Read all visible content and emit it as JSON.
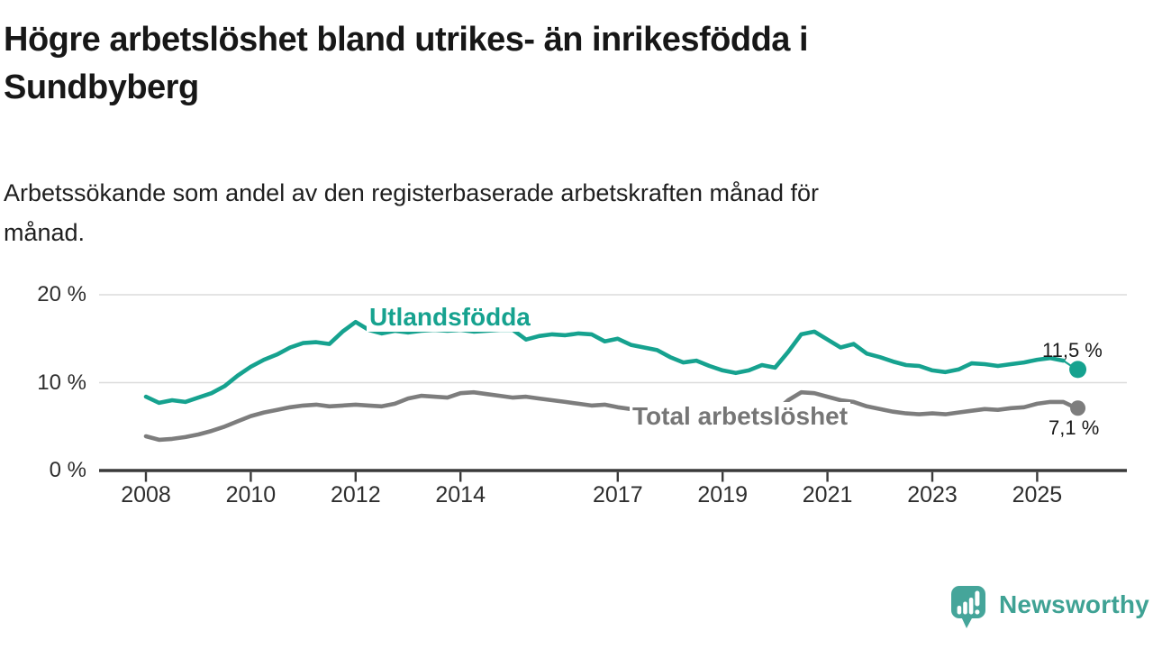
{
  "header": {
    "title_line1": "Högre arbetslöshet bland utrikes- än inrikesfödda i",
    "title_line2": "Sundbyberg",
    "subtitle_line1": "Arbetssökande som andel av den registerbaserade arbetskraften månad för",
    "subtitle_line2": "månad."
  },
  "chart_data": {
    "type": "line",
    "title": "Högre arbetslöshet bland utrikes- än inrikesfödda i Sundbyberg",
    "subtitle": "Arbetssökande som andel av den registerbaserade arbetskraften månad för månad.",
    "unit": "%",
    "grid": "horizontal",
    "legend_position": "inline-labels",
    "y_axis": {
      "range": [
        0,
        20
      ],
      "ticks": [
        {
          "value": 0,
          "label": "0 %"
        },
        {
          "value": 10,
          "label": "10 %"
        },
        {
          "value": 20,
          "label": "20 %"
        }
      ]
    },
    "x_axis": {
      "range": [
        2008,
        2026
      ],
      "ticks": [
        {
          "value": 2008,
          "label": "2008"
        },
        {
          "value": 2010,
          "label": "2010"
        },
        {
          "value": 2012,
          "label": "2012"
        },
        {
          "value": 2014,
          "label": "2014"
        },
        {
          "value": 2017,
          "label": "2017"
        },
        {
          "value": 2019,
          "label": "2019"
        },
        {
          "value": 2021,
          "label": "2021"
        },
        {
          "value": 2023,
          "label": "2023"
        },
        {
          "value": 2025,
          "label": "2025"
        }
      ]
    },
    "x": [
      2008,
      2008.25,
      2008.5,
      2008.75,
      2009,
      2009.25,
      2009.5,
      2009.75,
      2010,
      2010.25,
      2010.5,
      2010.75,
      2011,
      2011.25,
      2011.5,
      2011.75,
      2012,
      2012.25,
      2012.5,
      2012.75,
      2013,
      2013.25,
      2013.5,
      2013.75,
      2014,
      2014.25,
      2014.5,
      2014.75,
      2015,
      2015.25,
      2015.5,
      2015.75,
      2016,
      2016.25,
      2016.5,
      2016.75,
      2017,
      2017.25,
      2017.5,
      2017.75,
      2018,
      2018.25,
      2018.5,
      2018.75,
      2019,
      2019.25,
      2019.5,
      2019.75,
      2020,
      2020.25,
      2020.5,
      2020.75,
      2021,
      2021.25,
      2021.5,
      2021.75,
      2022,
      2022.25,
      2022.5,
      2022.75,
      2023,
      2023.25,
      2023.5,
      2023.75,
      2024,
      2024.25,
      2024.5,
      2024.75,
      2025,
      2025.25,
      2025.5,
      2025.75
    ],
    "series": [
      {
        "name": "Utlandsfödda",
        "color": "#16a28f",
        "end_label": "11,5 %",
        "end_value": 11.5,
        "values": [
          8.4,
          7.7,
          8.0,
          7.8,
          8.3,
          8.8,
          9.6,
          10.8,
          11.8,
          12.6,
          13.2,
          14.0,
          14.5,
          14.6,
          14.4,
          15.8,
          16.9,
          16.0,
          15.6,
          15.9,
          15.7,
          15.9,
          16.0,
          15.9,
          16.0,
          15.8,
          15.9,
          16.0,
          16.0,
          14.9,
          15.3,
          15.5,
          15.4,
          15.6,
          15.5,
          14.7,
          15.0,
          14.3,
          14.0,
          13.7,
          12.9,
          12.3,
          12.5,
          11.9,
          11.4,
          11.1,
          11.4,
          12.0,
          11.7,
          13.5,
          15.5,
          15.8,
          14.9,
          14.0,
          14.4,
          13.3,
          12.9,
          12.4,
          12.0,
          11.9,
          11.4,
          11.2,
          11.5,
          12.2,
          12.1,
          11.9,
          12.1,
          12.3,
          12.6,
          12.8,
          12.5,
          11.5
        ]
      },
      {
        "name": "Total arbetslöshet",
        "color": "#7d7d7d",
        "end_label": "7,1 %",
        "end_value": 7.1,
        "values": [
          3.9,
          3.5,
          3.6,
          3.8,
          4.1,
          4.5,
          5.0,
          5.6,
          6.2,
          6.6,
          6.9,
          7.2,
          7.4,
          7.5,
          7.3,
          7.4,
          7.5,
          7.4,
          7.3,
          7.6,
          8.2,
          8.5,
          8.4,
          8.3,
          8.8,
          8.9,
          8.7,
          8.5,
          8.3,
          8.4,
          8.2,
          8.0,
          7.8,
          7.6,
          7.4,
          7.5,
          7.2,
          7.0,
          7.1,
          6.9,
          6.8,
          6.6,
          6.7,
          6.5,
          6.4,
          6.3,
          6.4,
          6.6,
          6.7,
          8.0,
          8.9,
          8.8,
          8.4,
          8.0,
          7.8,
          7.3,
          7.0,
          6.7,
          6.5,
          6.4,
          6.5,
          6.4,
          6.6,
          6.8,
          7.0,
          6.9,
          7.1,
          7.2,
          7.6,
          7.8,
          7.8,
          7.1
        ]
      }
    ],
    "colors": {
      "grid": "#dcdcdc",
      "axis": "#3a3a3a",
      "tick_label": "#2e2e2e",
      "value_label": "#1a1a1a"
    }
  },
  "branding": {
    "logo_text": "Newsworthy",
    "logo_color": "#3fa294",
    "icon": "newsworthy-speech-bubble-bar-chart-icon"
  }
}
